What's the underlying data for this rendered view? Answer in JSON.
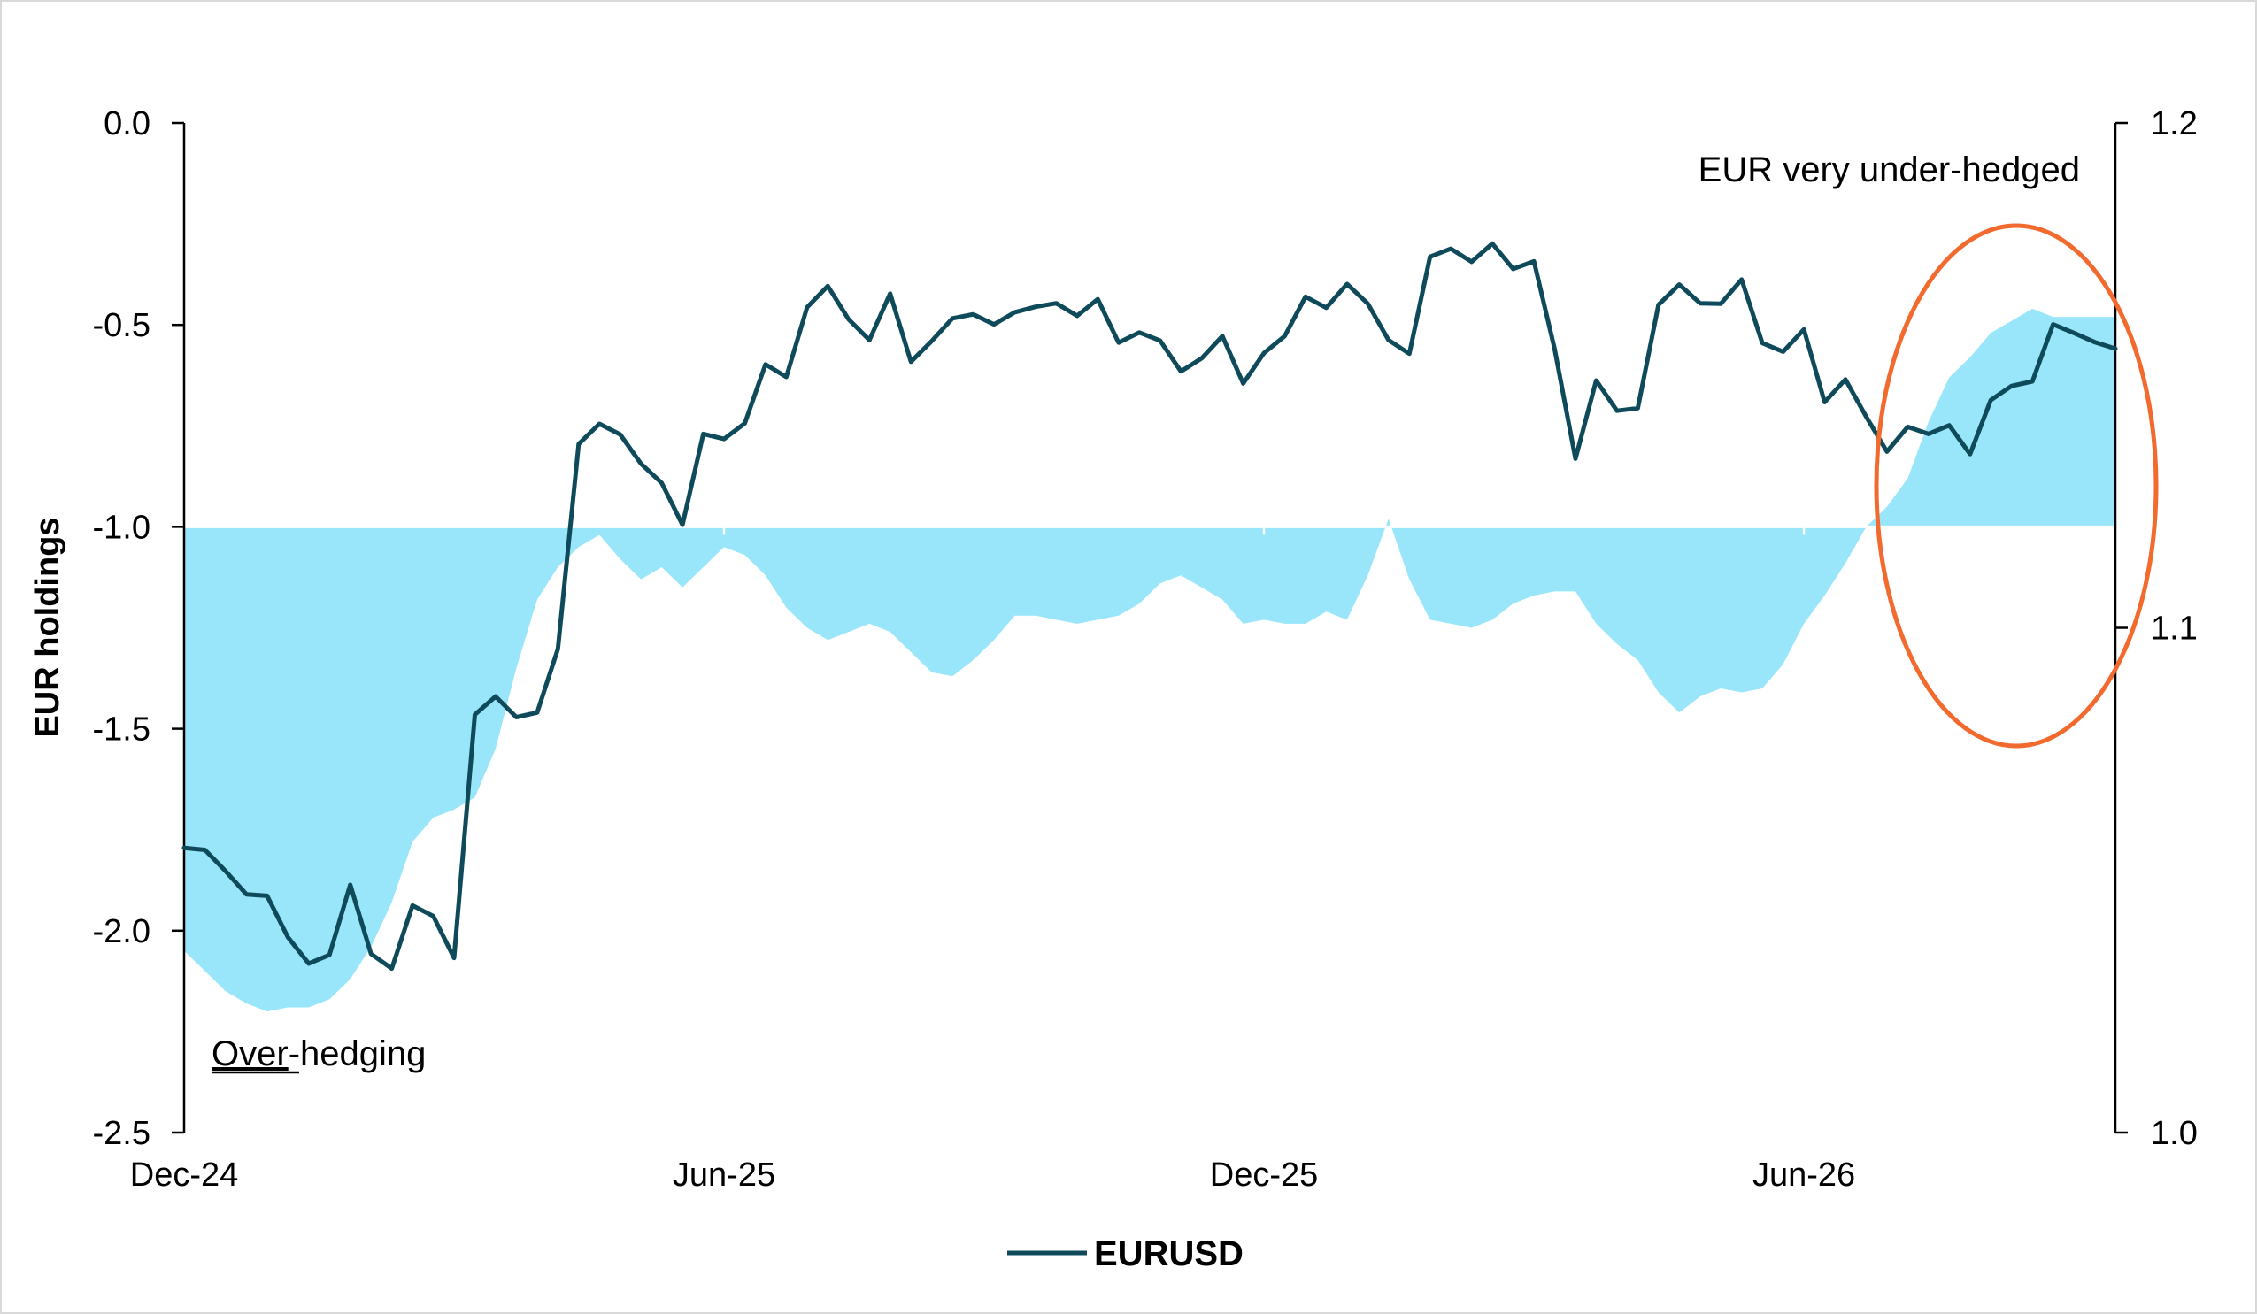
{
  "chart_data": {
    "type": "line",
    "ylabel_left": "EUR holdings",
    "ylabel_right": "",
    "left_axis": {
      "min": -2.5,
      "max": 0.0,
      "ticks": [
        "0.0",
        "-0.5",
        "-1.0",
        "-1.5",
        "-2.0",
        "-2.5"
      ],
      "tick_values": [
        0.0,
        -0.5,
        -1.0,
        -1.5,
        -2.0,
        -2.5
      ]
    },
    "right_axis": {
      "min": 1.0,
      "max": 1.2,
      "ticks": [
        "1.2",
        "1.1",
        "1.0"
      ],
      "tick_values": [
        1.2,
        1.1,
        1.0
      ]
    },
    "x_ticks": [
      "Dec-24",
      "Jun-25",
      "Dec-25",
      "Jun-26"
    ],
    "x_tick_index": [
      0,
      26,
      52,
      78
    ],
    "legend": {
      "placement": "bottom-center",
      "entries": [
        "EURUSD"
      ]
    },
    "annotations": {
      "top_right": "EUR very under-hedged",
      "bottom_left_underlined": "Over",
      "bottom_left_rest": "-hedging"
    },
    "colors": {
      "area": "#99e6fb",
      "line": "#0e4a5a",
      "circle": "#f26a2e",
      "baseline": "#ffffff"
    },
    "series": [
      {
        "name": "EURUSD",
        "axis": "right",
        "values": [
          1.0564,
          1.056,
          1.0518,
          1.0472,
          1.0469,
          1.0387,
          1.0335,
          1.0352,
          1.0491,
          1.0354,
          1.0325,
          1.045,
          1.0429,
          1.0346,
          1.0828,
          1.0864,
          1.0823,
          1.0832,
          1.0958,
          1.1364,
          1.1404,
          1.1383,
          1.1325,
          1.1287,
          1.1204,
          1.1384,
          1.1374,
          1.1405,
          1.1522,
          1.1497,
          1.1635,
          1.1677,
          1.1611,
          1.157,
          1.1662,
          1.1527,
          1.1568,
          1.1613,
          1.1621,
          1.1601,
          1.1625,
          1.1636,
          1.1643,
          1.1618,
          1.1651,
          1.1565,
          1.1585,
          1.1569,
          1.1508,
          1.1534,
          1.1578,
          1.1484,
          1.1544,
          1.1578,
          1.1656,
          1.1634,
          1.1681,
          1.1642,
          1.157,
          1.1543,
          1.1735,
          1.1751,
          1.1725,
          1.1761,
          1.1711,
          1.1726,
          1.1552,
          1.1335,
          1.149,
          1.143,
          1.1435,
          1.164,
          1.168,
          1.1643,
          1.1642,
          1.169,
          1.1564,
          1.1547,
          1.1591,
          1.1447,
          1.1492,
          1.1418,
          1.1349,
          1.1398,
          1.1384,
          1.1401,
          1.1344,
          1.1451,
          1.1479,
          1.1488,
          1.1601,
          1.1584,
          1.1566,
          1.1553
        ]
      },
      {
        "name": "",
        "axis": "left",
        "type": "area",
        "baseline": -1.0,
        "values": [
          -2.05,
          -2.1,
          -2.15,
          -2.18,
          -2.2,
          -2.19,
          -2.19,
          -2.17,
          -2.12,
          -2.04,
          -1.93,
          -1.78,
          -1.72,
          -1.7,
          -1.67,
          -1.55,
          -1.35,
          -1.18,
          -1.1,
          -1.05,
          -1.02,
          -1.08,
          -1.13,
          -1.1,
          -1.15,
          -1.1,
          -1.05,
          -1.07,
          -1.12,
          -1.2,
          -1.25,
          -1.28,
          -1.26,
          -1.24,
          -1.26,
          -1.31,
          -1.36,
          -1.37,
          -1.33,
          -1.28,
          -1.22,
          -1.22,
          -1.23,
          -1.24,
          -1.23,
          -1.22,
          -1.19,
          -1.14,
          -1.12,
          -1.15,
          -1.18,
          -1.24,
          -1.23,
          -1.24,
          -1.24,
          -1.21,
          -1.23,
          -1.12,
          -0.98,
          -1.13,
          -1.23,
          -1.24,
          -1.25,
          -1.23,
          -1.19,
          -1.17,
          -1.16,
          -1.16,
          -1.24,
          -1.29,
          -1.33,
          -1.41,
          -1.46,
          -1.42,
          -1.4,
          -1.41,
          -1.4,
          -1.34,
          -1.24,
          -1.17,
          -1.09,
          -1.0,
          -0.95,
          -0.88,
          -0.74,
          -0.63,
          -0.58,
          -0.52,
          -0.49,
          -0.46,
          -0.48,
          -0.48,
          -0.48,
          -0.48
        ]
      }
    ]
  }
}
